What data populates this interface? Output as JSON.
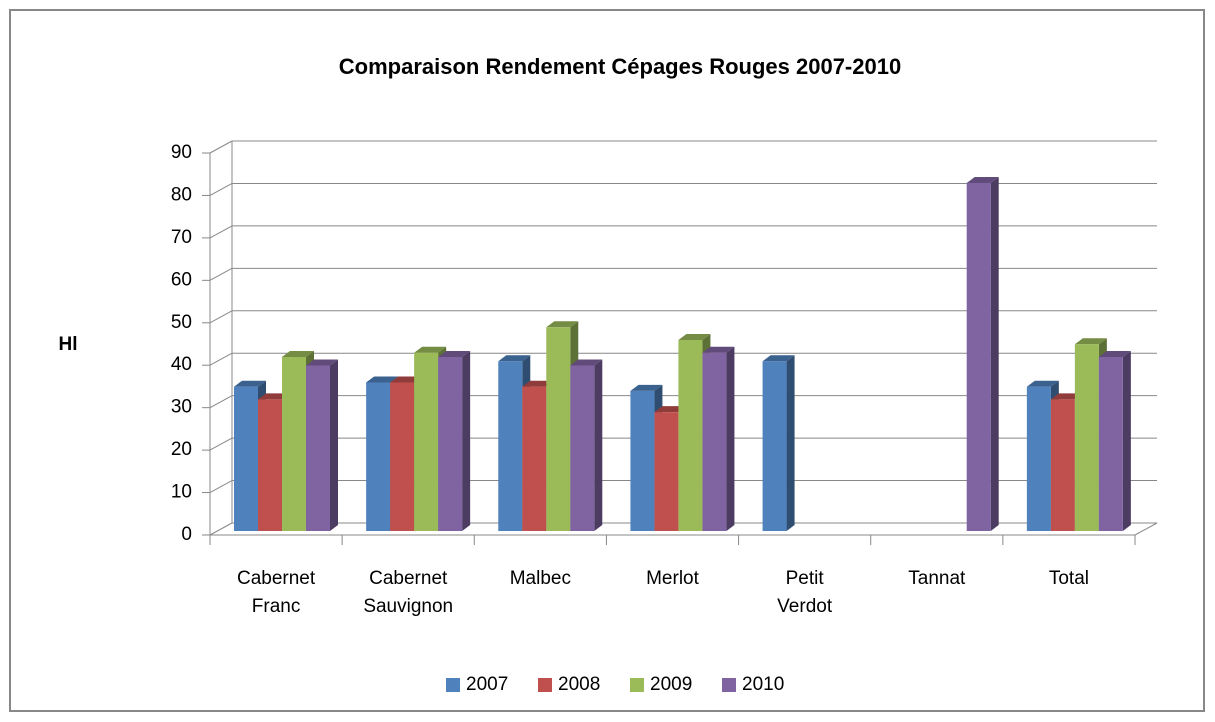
{
  "chart_data": {
    "type": "bar",
    "title": "Comparaison Rendement Cépages Rouges 2007-2010",
    "y_label": "Hl",
    "categories": [
      "Cabernet Franc",
      "Cabernet Sauvignon",
      "Malbec",
      "Merlot",
      "Petit Verdot",
      "Tannat",
      "Total"
    ],
    "series": [
      {
        "name": "2007",
        "color": "#4f81bd",
        "values": [
          34,
          35,
          40,
          33,
          40,
          null,
          34
        ]
      },
      {
        "name": "2008",
        "color": "#c0504d",
        "values": [
          31,
          35,
          34,
          28,
          null,
          null,
          31
        ]
      },
      {
        "name": "2009",
        "color": "#9bbb59",
        "values": [
          41,
          42,
          48,
          45,
          null,
          null,
          44
        ]
      },
      {
        "name": "2010",
        "color": "#8064a2",
        "values": [
          39,
          41,
          39,
          42,
          null,
          82,
          41
        ]
      }
    ],
    "ylim": [
      0,
      90
    ],
    "yticks": [
      0,
      10,
      20,
      30,
      40,
      50,
      60,
      70,
      80,
      90
    ],
    "grid": true,
    "legend": "bottom"
  }
}
